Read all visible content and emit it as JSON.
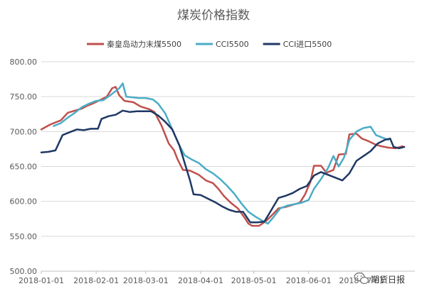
{
  "chart_data": {
    "type": "line",
    "title": "煤炭价格指数",
    "ylim": [
      500,
      800
    ],
    "y_ticks": [
      "800.00",
      "750.00",
      "700.00",
      "650.00",
      "600.00",
      "550.00",
      "500.00"
    ],
    "x_ticks": [
      "2018-01-01",
      "2018-02-01",
      "2018-03-01",
      "2018-04-01",
      "2018-05-01",
      "2018-06-01",
      "2018-07-01"
    ],
    "grid": "horizontal",
    "legend_position": "top",
    "series": [
      {
        "name": "秦皇岛动力末煤5500",
        "color": "#C0504D",
        "points": [
          [
            "2018-01-01",
            703
          ],
          [
            "2018-01-06",
            710
          ],
          [
            "2018-01-12",
            716
          ],
          [
            "2018-01-16",
            727
          ],
          [
            "2018-01-20",
            730
          ],
          [
            "2018-01-24",
            733
          ],
          [
            "2018-01-27",
            737
          ],
          [
            "2018-01-30",
            740
          ],
          [
            "2018-02-03",
            745
          ],
          [
            "2018-02-07",
            750
          ],
          [
            "2018-02-10",
            762
          ],
          [
            "2018-02-12",
            764
          ],
          [
            "2018-02-14",
            752
          ],
          [
            "2018-02-17",
            744
          ],
          [
            "2018-02-22",
            742
          ],
          [
            "2018-02-26",
            736
          ],
          [
            "2018-03-03",
            732
          ],
          [
            "2018-03-06",
            728
          ],
          [
            "2018-03-10",
            708
          ],
          [
            "2018-03-14",
            683
          ],
          [
            "2018-03-17",
            673
          ],
          [
            "2018-03-19",
            660
          ],
          [
            "2018-03-22",
            645
          ],
          [
            "2018-03-26",
            644
          ],
          [
            "2018-03-31",
            638
          ],
          [
            "2018-04-04",
            630
          ],
          [
            "2018-04-08",
            626
          ],
          [
            "2018-04-11",
            618
          ],
          [
            "2018-04-14",
            608
          ],
          [
            "2018-04-18",
            598
          ],
          [
            "2018-04-22",
            590
          ],
          [
            "2018-04-26",
            576
          ],
          [
            "2018-04-28",
            568
          ],
          [
            "2018-04-30",
            565
          ],
          [
            "2018-05-04",
            565
          ],
          [
            "2018-05-08",
            572
          ],
          [
            "2018-05-12",
            582
          ],
          [
            "2018-05-15",
            590
          ],
          [
            "2018-05-19",
            592
          ],
          [
            "2018-05-23",
            595
          ],
          [
            "2018-05-27",
            598
          ],
          [
            "2018-05-30",
            610
          ],
          [
            "2018-06-02",
            628
          ],
          [
            "2018-06-04",
            651
          ],
          [
            "2018-06-08",
            651
          ],
          [
            "2018-06-11",
            641
          ],
          [
            "2018-06-15",
            645
          ],
          [
            "2018-06-18",
            667
          ],
          [
            "2018-06-22",
            668
          ],
          [
            "2018-06-24",
            696
          ],
          [
            "2018-06-28",
            697
          ],
          [
            "2018-07-01",
            690
          ],
          [
            "2018-07-05",
            686
          ],
          [
            "2018-07-09",
            681
          ],
          [
            "2018-07-12",
            679
          ],
          [
            "2018-07-16",
            677
          ],
          [
            "2018-07-20",
            676
          ],
          [
            "2018-07-24",
            679
          ]
        ]
      },
      {
        "name": "CCI5500",
        "color": "#4BACC6",
        "points": [
          [
            "2018-01-08",
            708
          ],
          [
            "2018-01-12",
            712
          ],
          [
            "2018-01-16",
            720
          ],
          [
            "2018-01-20",
            727
          ],
          [
            "2018-01-24",
            735
          ],
          [
            "2018-01-28",
            740
          ],
          [
            "2018-02-01",
            744
          ],
          [
            "2018-02-05",
            745
          ],
          [
            "2018-02-09",
            752
          ],
          [
            "2018-02-12",
            758
          ],
          [
            "2018-02-14",
            762
          ],
          [
            "2018-02-16",
            769
          ],
          [
            "2018-02-18",
            750
          ],
          [
            "2018-02-22",
            749
          ],
          [
            "2018-02-25",
            748
          ],
          [
            "2018-03-01",
            748
          ],
          [
            "2018-03-05",
            746
          ],
          [
            "2018-03-08",
            740
          ],
          [
            "2018-03-12",
            726
          ],
          [
            "2018-03-16",
            703
          ],
          [
            "2018-03-20",
            680
          ],
          [
            "2018-03-23",
            666
          ],
          [
            "2018-03-27",
            660
          ],
          [
            "2018-03-31",
            655
          ],
          [
            "2018-04-04",
            646
          ],
          [
            "2018-04-08",
            640
          ],
          [
            "2018-04-12",
            632
          ],
          [
            "2018-04-16",
            622
          ],
          [
            "2018-04-20",
            611
          ],
          [
            "2018-04-24",
            597
          ],
          [
            "2018-04-28",
            585
          ],
          [
            "2018-05-02",
            578
          ],
          [
            "2018-05-06",
            572
          ],
          [
            "2018-05-09",
            568
          ],
          [
            "2018-05-12",
            577
          ],
          [
            "2018-05-16",
            590
          ],
          [
            "2018-05-20",
            594
          ],
          [
            "2018-05-24",
            596
          ],
          [
            "2018-05-28",
            598
          ],
          [
            "2018-06-01",
            602
          ],
          [
            "2018-06-04",
            618
          ],
          [
            "2018-06-08",
            632
          ],
          [
            "2018-06-12",
            648
          ],
          [
            "2018-06-15",
            665
          ],
          [
            "2018-06-18",
            650
          ],
          [
            "2018-06-21",
            663
          ],
          [
            "2018-06-24",
            688
          ],
          [
            "2018-06-28",
            700
          ],
          [
            "2018-07-02",
            705
          ],
          [
            "2018-07-06",
            707
          ],
          [
            "2018-07-09",
            695
          ],
          [
            "2018-07-13",
            691
          ],
          [
            "2018-07-16",
            688
          ]
        ]
      },
      {
        "name": "CCI进口5500",
        "color": "#1F3864",
        "points": [
          [
            "2018-01-01",
            670
          ],
          [
            "2018-01-05",
            671
          ],
          [
            "2018-01-09",
            673
          ],
          [
            "2018-01-13",
            695
          ],
          [
            "2018-01-17",
            699
          ],
          [
            "2018-01-21",
            703
          ],
          [
            "2018-01-25",
            702
          ],
          [
            "2018-01-29",
            704
          ],
          [
            "2018-02-02",
            704
          ],
          [
            "2018-02-04",
            718
          ],
          [
            "2018-02-08",
            722
          ],
          [
            "2018-02-12",
            724
          ],
          [
            "2018-02-16",
            730
          ],
          [
            "2018-02-20",
            728
          ],
          [
            "2018-02-24",
            729
          ],
          [
            "2018-02-28",
            729
          ],
          [
            "2018-03-04",
            729
          ],
          [
            "2018-03-08",
            723
          ],
          [
            "2018-03-12",
            714
          ],
          [
            "2018-03-16",
            703
          ],
          [
            "2018-03-20",
            680
          ],
          [
            "2018-03-23",
            655
          ],
          [
            "2018-03-26",
            630
          ],
          [
            "2018-03-28",
            610
          ],
          [
            "2018-04-01",
            609
          ],
          [
            "2018-04-05",
            604
          ],
          [
            "2018-04-09",
            599
          ],
          [
            "2018-04-13",
            593
          ],
          [
            "2018-04-17",
            588
          ],
          [
            "2018-04-21",
            585
          ],
          [
            "2018-04-25",
            585
          ],
          [
            "2018-04-29",
            570
          ],
          [
            "2018-05-03",
            570
          ],
          [
            "2018-05-07",
            571
          ],
          [
            "2018-05-11",
            588
          ],
          [
            "2018-05-15",
            605
          ],
          [
            "2018-05-19",
            608
          ],
          [
            "2018-05-23",
            612
          ],
          [
            "2018-05-27",
            618
          ],
          [
            "2018-05-31",
            622
          ],
          [
            "2018-06-04",
            637
          ],
          [
            "2018-06-08",
            642
          ],
          [
            "2018-06-12",
            638
          ],
          [
            "2018-06-16",
            634
          ],
          [
            "2018-06-20",
            630
          ],
          [
            "2018-06-24",
            640
          ],
          [
            "2018-06-28",
            658
          ],
          [
            "2018-07-02",
            665
          ],
          [
            "2018-07-06",
            672
          ],
          [
            "2018-07-10",
            683
          ],
          [
            "2018-07-14",
            688
          ],
          [
            "2018-07-17",
            690
          ],
          [
            "2018-07-19",
            678
          ],
          [
            "2018-07-22",
            676
          ],
          [
            "2018-07-25",
            678
          ]
        ]
      }
    ]
  },
  "watermark": {
    "text": "期货日报",
    "icon": "wechat-icon"
  }
}
